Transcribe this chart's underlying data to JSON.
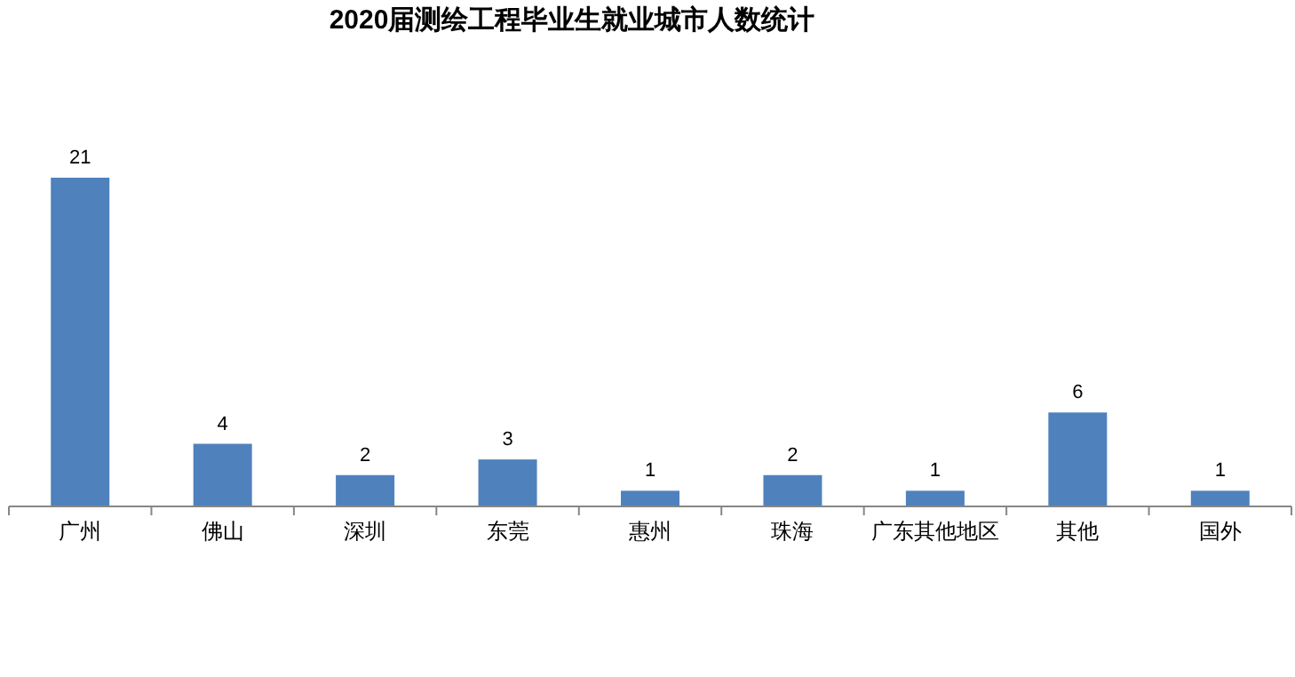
{
  "chart_data": {
    "type": "bar",
    "title": "2020届测绘工程毕业生就业城市人数统计",
    "categories": [
      "广州",
      "佛山",
      "深圳",
      "东莞",
      "惠州",
      "珠海",
      "广东其他地区",
      "其他",
      "国外"
    ],
    "values": [
      21,
      4,
      2,
      3,
      1,
      2,
      1,
      6,
      1
    ],
    "color": "#4f81bd",
    "data_labels": true
  }
}
